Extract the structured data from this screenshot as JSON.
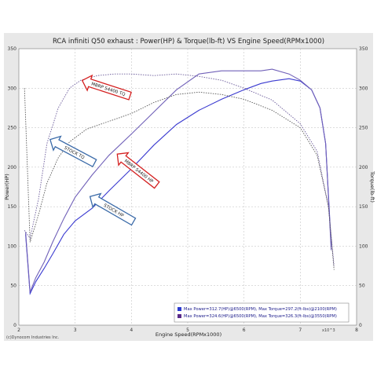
{
  "chart_data": {
    "type": "line",
    "title": "RCA infiniti Q50 exhaust  : Power(HP) & Torque(lb-ft) VS Engine Speed(RPMx1000)",
    "xlabel": "Engine Speed(RPMx1000)",
    "ylabel_left": "Power(HP)",
    "ylabel_right": "Torque(lb-ft)",
    "x_multiplier_label": "x10^3",
    "copyright": "(c)Dynocom Industries Inc.",
    "xlim": [
      2,
      8
    ],
    "ylim": [
      0,
      350
    ],
    "x_ticks": [
      "2",
      "3",
      "4",
      "5",
      "6",
      "7",
      "8"
    ],
    "y_ticks": [
      "0",
      "50",
      "100",
      "150",
      "200",
      "250",
      "300",
      "350"
    ],
    "grid": true,
    "series": [
      {
        "key": "stock_hp",
        "style": "solid",
        "color": "#3a3ad0",
        "x": [
          2.12,
          2.2,
          2.3,
          2.45,
          2.6,
          2.8,
          3.0,
          3.3,
          3.6,
          4.0,
          4.4,
          4.8,
          5.2,
          5.6,
          6.0,
          6.3,
          6.5,
          6.8,
          7.0,
          7.2,
          7.35,
          7.45,
          7.55
        ],
        "y": [
          115,
          40,
          55,
          72,
          90,
          115,
          132,
          148,
          170,
          198,
          228,
          254,
          272,
          286,
          298,
          306,
          309,
          312,
          309,
          298,
          275,
          230,
          100
        ]
      },
      {
        "key": "mbrp_hp",
        "style": "solid",
        "color": "#7060b8",
        "x": [
          2.12,
          2.2,
          2.3,
          2.45,
          2.6,
          2.8,
          3.0,
          3.3,
          3.6,
          4.0,
          4.4,
          4.8,
          5.2,
          5.6,
          6.0,
          6.3,
          6.5,
          6.8,
          7.0,
          7.2,
          7.35,
          7.45,
          7.55
        ],
        "y": [
          118,
          42,
          60,
          80,
          105,
          135,
          162,
          190,
          215,
          242,
          270,
          298,
          318,
          322,
          322,
          322,
          324,
          318,
          310,
          298,
          275,
          230,
          95
        ]
      },
      {
        "key": "stock_tq",
        "style": "dotted",
        "color": "#555555",
        "x": [
          2.1,
          2.2,
          2.35,
          2.5,
          2.7,
          2.9,
          3.2,
          3.6,
          4.0,
          4.4,
          4.8,
          5.2,
          5.6,
          6.0,
          6.5,
          7.0,
          7.3,
          7.5,
          7.6
        ],
        "y": [
          300,
          105,
          140,
          180,
          212,
          232,
          248,
          258,
          268,
          282,
          292,
          295,
          292,
          286,
          272,
          250,
          215,
          150,
          70
        ]
      },
      {
        "key": "mbrp_tq",
        "style": "dotted",
        "color": "#6a5a9a",
        "x": [
          2.1,
          2.2,
          2.35,
          2.5,
          2.7,
          2.9,
          3.1,
          3.4,
          3.7,
          4.0,
          4.4,
          4.8,
          5.2,
          5.6,
          6.0,
          6.5,
          7.0,
          7.3,
          7.5,
          7.6
        ],
        "y": [
          120,
          110,
          160,
          230,
          275,
          300,
          310,
          316,
          318,
          318,
          316,
          318,
          315,
          310,
          300,
          285,
          255,
          220,
          150,
          75
        ]
      }
    ],
    "legend": {
      "placement": "bottom-right",
      "entries": [
        {
          "color": "#2b3bd0",
          "text": "Max Power=312.7(HP)@6500(RPM), Max Torque=297.2(ft-lbs)@2100(RPM)"
        },
        {
          "color": "#5a2a8a",
          "text": "Max Power=324.6(HP)@6500(RPM), Max Torque=326.3(ft-lbs)@3550(RPM)"
        }
      ]
    },
    "annotations": [
      {
        "key": "mbrp_tq_arrow",
        "text": "MBRP S4400 TQ",
        "color": "#d42020",
        "x": 3.55,
        "y": 300,
        "angle": 18
      },
      {
        "key": "stock_tq_arrow",
        "text": "STOCK TQ",
        "color": "#3a6aa8",
        "x": 2.95,
        "y": 220,
        "angle": 28
      },
      {
        "key": "mbrp_hp_arrow",
        "text": "MBRP S4400 HP",
        "color": "#d42020",
        "x": 4.1,
        "y": 197,
        "angle": 38
      },
      {
        "key": "stock_hp_arrow",
        "text": "STOCK HP",
        "color": "#3a6aa8",
        "x": 3.65,
        "y": 147,
        "angle": 30
      }
    ]
  }
}
